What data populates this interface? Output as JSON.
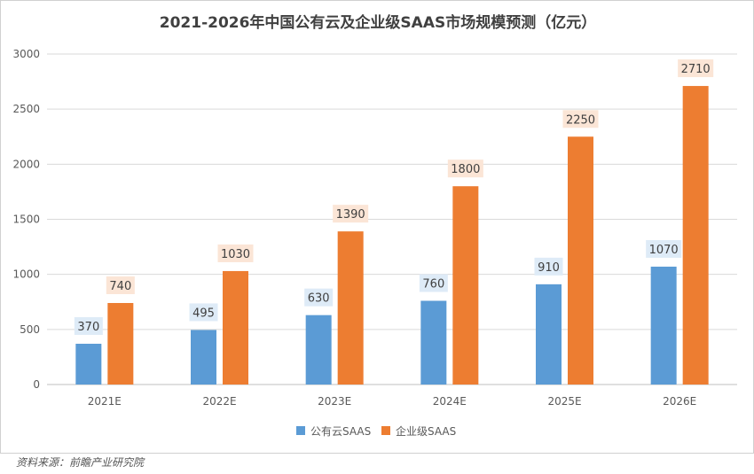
{
  "chart_data": {
    "type": "bar",
    "title": "2021-2026年中国公有云及企业级SAAS市场规模预测（亿元）",
    "categories": [
      "2021E",
      "2022E",
      "2023E",
      "2024E",
      "2025E",
      "2026E"
    ],
    "series": [
      {
        "name": "公有云SAAS",
        "color": "#5b9bd5",
        "label_bg": "#deebf7",
        "values": [
          370,
          495,
          630,
          760,
          910,
          1070
        ],
        "labels": [
          "370",
          "495",
          "630",
          "760",
          "910",
          "1070"
        ]
      },
      {
        "name": "企业级SAAS",
        "color": "#ed7d31",
        "label_bg": "#fbe5d6",
        "values": [
          740,
          1030,
          1390,
          1800,
          2250,
          2710
        ],
        "labels": [
          "740",
          "1030",
          "1390",
          "1800",
          "2250",
          "2710"
        ]
      }
    ],
    "y_ticks": [
      "0",
      "500",
      "1000",
      "1500",
      "2000",
      "2500",
      "3000"
    ],
    "ylim": [
      0,
      3000
    ],
    "grid": true,
    "legend_position": "bottom",
    "xlabel": "",
    "ylabel": ""
  },
  "source": "资料来源：前瞻产业研究院",
  "colors": {
    "grid": "#d9d9d9",
    "text": "#595959",
    "title": "#404040"
  }
}
